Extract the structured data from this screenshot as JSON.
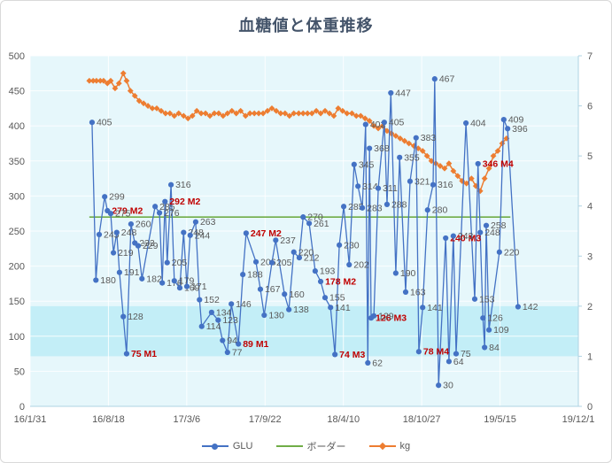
{
  "title": "血糖値と体重推移",
  "legend": {
    "glu": "GLU",
    "border": "ボーダー",
    "kg": "kg"
  },
  "colors": {
    "glu": "#4472C4",
    "border": "#70AD47",
    "kg": "#ED7D31",
    "red_label": "#C00000",
    "label": "#595959",
    "title": "#44546A",
    "plot_bg": "#E6F7FB",
    "band": "#C3EEF7",
    "grid": "#FFFFFF",
    "axis_line": "#AFD3E3"
  },
  "chart_data": {
    "type": "line",
    "title": "血糖値と体重推移",
    "x_unit": "fraction of x-axis from 16/1/31 (0) to 19/12/1 (1)",
    "x_axis": {
      "labels": [
        "16/1/31",
        "16/8/18",
        "17/3/6",
        "17/9/22",
        "18/4/10",
        "18/10/27",
        "19/5/15",
        "19/12/1"
      ]
    },
    "y_axis_left": {
      "name": "GLU",
      "min": 0,
      "max": 500,
      "ticks": [
        500,
        450,
        400,
        350,
        300,
        250,
        200,
        150,
        100,
        50,
        0
      ]
    },
    "y_axis_right": {
      "name": "kg",
      "min": 0,
      "max": 7,
      "ticks": [
        7,
        6,
        5,
        4,
        3,
        2,
        1,
        0
      ]
    },
    "normal_range_band": {
      "axis": "right",
      "from": 1,
      "to": 2
    },
    "series": [
      {
        "name": "GLU",
        "axis": "left",
        "marker": "circle",
        "color": "#4472C4",
        "points": [
          [
            0.113,
            405
          ],
          [
            0.12,
            180
          ],
          [
            0.126,
            245
          ],
          [
            0.136,
            299
          ],
          [
            0.141,
            279,
            "M2"
          ],
          [
            0.147,
            275
          ],
          [
            0.152,
            219
          ],
          [
            0.158,
            248
          ],
          [
            0.163,
            191
          ],
          [
            0.17,
            128
          ],
          [
            0.176,
            75,
            "M1"
          ],
          [
            0.184,
            260
          ],
          [
            0.191,
            233
          ],
          [
            0.197,
            229
          ],
          [
            0.204,
            182
          ],
          [
            0.228,
            285
          ],
          [
            0.236,
            276
          ],
          [
            0.241,
            176
          ],
          [
            0.246,
            292,
            "M2"
          ],
          [
            0.25,
            205
          ],
          [
            0.257,
            316
          ],
          [
            0.263,
            179
          ],
          [
            0.273,
            169
          ],
          [
            0.28,
            248
          ],
          [
            0.286,
            171
          ],
          [
            0.292,
            244
          ],
          [
            0.302,
            263
          ],
          [
            0.309,
            152
          ],
          [
            0.313,
            114
          ],
          [
            0.331,
            134
          ],
          [
            0.343,
            123
          ],
          [
            0.351,
            94
          ],
          [
            0.36,
            77
          ],
          [
            0.367,
            146
          ],
          [
            0.38,
            89,
            "M1"
          ],
          [
            0.388,
            188
          ],
          [
            0.394,
            247,
            "M2"
          ],
          [
            0.412,
            206
          ],
          [
            0.42,
            167
          ],
          [
            0.427,
            130
          ],
          [
            0.441,
            205
          ],
          [
            0.448,
            237
          ],
          [
            0.464,
            160
          ],
          [
            0.472,
            138
          ],
          [
            0.481,
            220
          ],
          [
            0.491,
            212
          ],
          [
            0.498,
            270
          ],
          [
            0.509,
            261
          ],
          [
            0.52,
            193
          ],
          [
            0.53,
            178,
            "M2"
          ],
          [
            0.538,
            155
          ],
          [
            0.548,
            141
          ],
          [
            0.556,
            74,
            "M3"
          ],
          [
            0.564,
            230
          ],
          [
            0.572,
            285
          ],
          [
            0.582,
            202
          ],
          [
            0.591,
            345
          ],
          [
            0.598,
            314
          ],
          [
            0.606,
            283
          ],
          [
            0.612,
            402
          ],
          [
            0.616,
            62
          ],
          [
            0.619,
            368
          ],
          [
            0.622,
            126,
            "M3"
          ],
          [
            0.627,
            129
          ],
          [
            0.635,
            311
          ],
          [
            0.646,
            405
          ],
          [
            0.651,
            288
          ],
          [
            0.658,
            447
          ],
          [
            0.667,
            190
          ],
          [
            0.674,
            355
          ],
          [
            0.685,
            163
          ],
          [
            0.693,
            321
          ],
          [
            0.704,
            383
          ],
          [
            0.709,
            78,
            "M4"
          ],
          [
            0.716,
            141
          ],
          [
            0.725,
            280
          ],
          [
            0.735,
            316
          ],
          [
            0.738,
            467
          ],
          [
            0.745,
            30
          ],
          [
            0.758,
            240,
            "M3"
          ],
          [
            0.764,
            64
          ],
          [
            0.772,
            243
          ],
          [
            0.777,
            75
          ],
          [
            0.795,
            404
          ],
          [
            0.811,
            153
          ],
          [
            0.817,
            346,
            "M4"
          ],
          [
            0.821,
            248
          ],
          [
            0.826,
            126
          ],
          [
            0.829,
            84
          ],
          [
            0.832,
            258
          ],
          [
            0.837,
            109
          ],
          [
            0.856,
            220
          ],
          [
            0.864,
            409
          ],
          [
            0.871,
            396
          ],
          [
            0.89,
            142
          ]
        ]
      },
      {
        "name": "ボーダー",
        "type": "hline",
        "axis": "left",
        "color": "#70AD47",
        "value": 270,
        "x_from": 0.108,
        "x_to": 0.876
      },
      {
        "name": "kg",
        "axis": "right",
        "marker": "diamond",
        "color": "#ED7D31",
        "points": [
          [
            0.108,
            6.5
          ],
          [
            0.115,
            6.5
          ],
          [
            0.121,
            6.5
          ],
          [
            0.128,
            6.5
          ],
          [
            0.134,
            6.5
          ],
          [
            0.141,
            6.45
          ],
          [
            0.147,
            6.5
          ],
          [
            0.155,
            6.35
          ],
          [
            0.162,
            6.45
          ],
          [
            0.17,
            6.65
          ],
          [
            0.176,
            6.5
          ],
          [
            0.183,
            6.3
          ],
          [
            0.191,
            6.2
          ],
          [
            0.199,
            6.1
          ],
          [
            0.207,
            6.05
          ],
          [
            0.215,
            6.0
          ],
          [
            0.223,
            5.95
          ],
          [
            0.231,
            5.95
          ],
          [
            0.239,
            5.9
          ],
          [
            0.247,
            5.85
          ],
          [
            0.255,
            5.85
          ],
          [
            0.263,
            5.8
          ],
          [
            0.271,
            5.85
          ],
          [
            0.28,
            5.8
          ],
          [
            0.288,
            5.75
          ],
          [
            0.296,
            5.8
          ],
          [
            0.304,
            5.9
          ],
          [
            0.312,
            5.85
          ],
          [
            0.32,
            5.85
          ],
          [
            0.328,
            5.8
          ],
          [
            0.336,
            5.85
          ],
          [
            0.344,
            5.85
          ],
          [
            0.352,
            5.8
          ],
          [
            0.36,
            5.85
          ],
          [
            0.368,
            5.9
          ],
          [
            0.376,
            5.85
          ],
          [
            0.384,
            5.9
          ],
          [
            0.393,
            5.8
          ],
          [
            0.401,
            5.85
          ],
          [
            0.409,
            5.85
          ],
          [
            0.417,
            5.85
          ],
          [
            0.425,
            5.85
          ],
          [
            0.433,
            5.9
          ],
          [
            0.441,
            5.95
          ],
          [
            0.449,
            5.9
          ],
          [
            0.457,
            5.85
          ],
          [
            0.465,
            5.85
          ],
          [
            0.473,
            5.8
          ],
          [
            0.481,
            5.85
          ],
          [
            0.49,
            5.85
          ],
          [
            0.498,
            5.85
          ],
          [
            0.506,
            5.85
          ],
          [
            0.514,
            5.85
          ],
          [
            0.522,
            5.9
          ],
          [
            0.53,
            5.85
          ],
          [
            0.538,
            5.9
          ],
          [
            0.546,
            5.85
          ],
          [
            0.554,
            5.8
          ],
          [
            0.562,
            5.95
          ],
          [
            0.57,
            5.9
          ],
          [
            0.578,
            5.85
          ],
          [
            0.587,
            5.85
          ],
          [
            0.595,
            5.8
          ],
          [
            0.603,
            5.8
          ],
          [
            0.611,
            5.75
          ],
          [
            0.619,
            5.7
          ],
          [
            0.627,
            5.6
          ],
          [
            0.635,
            5.55
          ],
          [
            0.643,
            5.6
          ],
          [
            0.651,
            5.5
          ],
          [
            0.659,
            5.45
          ],
          [
            0.667,
            5.4
          ],
          [
            0.675,
            5.35
          ],
          [
            0.683,
            5.3
          ],
          [
            0.691,
            5.25
          ],
          [
            0.7,
            5.2
          ],
          [
            0.708,
            5.15
          ],
          [
            0.716,
            5.1
          ],
          [
            0.724,
            5.0
          ],
          [
            0.732,
            4.9
          ],
          [
            0.74,
            4.85
          ],
          [
            0.748,
            4.8
          ],
          [
            0.756,
            4.75
          ],
          [
            0.764,
            4.85
          ],
          [
            0.772,
            4.7
          ],
          [
            0.78,
            4.6
          ],
          [
            0.788,
            4.5
          ],
          [
            0.796,
            4.45
          ],
          [
            0.805,
            4.55
          ],
          [
            0.813,
            4.4
          ],
          [
            0.821,
            4.3
          ],
          [
            0.829,
            4.55
          ],
          [
            0.837,
            4.75
          ],
          [
            0.845,
            5.0
          ],
          [
            0.853,
            5.1
          ],
          [
            0.861,
            5.25
          ],
          [
            0.869,
            5.35
          ]
        ]
      }
    ]
  }
}
